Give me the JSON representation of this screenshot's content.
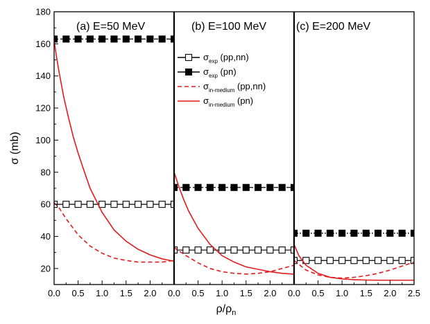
{
  "chart_data": {
    "type": "line",
    "ylabel": "σ (mb)",
    "xlabel": {
      "main": "ρ/ρ",
      "sub": "n"
    },
    "ylim": [
      10,
      180
    ],
    "yticks": [
      "20",
      "40",
      "60",
      "80",
      "100",
      "120",
      "140",
      "160",
      "180"
    ],
    "xlim": [
      0,
      2.5
    ],
    "xticks": [
      "0.0",
      "0.5",
      "1.0",
      "1.5",
      "2.0",
      "2.5"
    ],
    "colors": {
      "exp": "#000000",
      "in_medium": "#e31a1c"
    },
    "legend": [
      {
        "id": "exp_ppnn",
        "style": "open-square-line",
        "main": "σ",
        "sub": "exp",
        "rest": " (pp,nn)"
      },
      {
        "id": "exp_pn",
        "style": "filled-square-line",
        "main": "σ",
        "sub": "exp",
        "rest": " (pn)"
      },
      {
        "id": "med_ppnn",
        "style": "red-dashed",
        "main": "σ",
        "sub": "in-medium",
        "rest": " (pp,nn)"
      },
      {
        "id": "med_pn",
        "style": "red-solid",
        "main": "σ",
        "sub": "in-medium",
        "rest": " (pn)"
      }
    ],
    "panels": [
      {
        "title": "(a) E=50 MeV",
        "series": [
          {
            "id": "exp_ppnn",
            "x": [
              0,
              0.25,
              0.5,
              0.75,
              1.0,
              1.25,
              1.5,
              1.75,
              2.0,
              2.25,
              2.5
            ],
            "y": [
              60,
              60,
              60,
              60,
              60,
              60,
              60,
              60,
              60,
              60,
              60
            ]
          },
          {
            "id": "exp_pn",
            "x": [
              0,
              0.25,
              0.5,
              0.75,
              1.0,
              1.25,
              1.5,
              1.75,
              2.0,
              2.25,
              2.5
            ],
            "y": [
              163,
              163,
              163,
              163,
              163,
              163,
              163,
              163,
              163,
              163,
              163
            ]
          },
          {
            "id": "med_ppnn",
            "x": [
              0,
              0.1,
              0.25,
              0.5,
              0.75,
              1.0,
              1.25,
              1.5,
              1.75,
              2.0,
              2.25,
              2.5
            ],
            "y": [
              61,
              58,
              51,
              41,
              34,
              29.5,
              26.5,
              25,
              24,
              24,
              24,
              25
            ]
          },
          {
            "id": "med_pn",
            "x": [
              0,
              0.05,
              0.1,
              0.2,
              0.3,
              0.4,
              0.5,
              0.6,
              0.75,
              1.0,
              1.25,
              1.5,
              1.75,
              2.0,
              2.25,
              2.5
            ],
            "y": [
              162,
              152,
              143,
              127,
              114,
              102,
              92,
              83,
              70,
              55,
              44,
              37,
              32,
              28.5,
              26,
              24.5
            ]
          }
        ]
      },
      {
        "title": "(b) E=100 MeV",
        "series": [
          {
            "id": "exp_ppnn",
            "x": [
              0,
              0.25,
              0.5,
              0.75,
              1.0,
              1.25,
              1.5,
              1.75,
              2.0,
              2.25,
              2.5
            ],
            "y": [
              31.5,
              31.5,
              31.5,
              31.5,
              31.5,
              31.5,
              31.5,
              31.5,
              31.5,
              31.5,
              31.5
            ]
          },
          {
            "id": "exp_pn",
            "x": [
              0,
              0.25,
              0.5,
              0.75,
              1.0,
              1.25,
              1.5,
              1.75,
              2.0,
              2.25,
              2.5
            ],
            "y": [
              70.5,
              70.5,
              70.5,
              70.5,
              70.5,
              70.5,
              70.5,
              70.5,
              70.5,
              70.5,
              70.5
            ]
          },
          {
            "id": "med_ppnn",
            "x": [
              0,
              0.25,
              0.5,
              0.75,
              1.0,
              1.25,
              1.5,
              1.75,
              2.0,
              2.25,
              2.5
            ],
            "y": [
              33,
              28,
              23.5,
              20,
              18,
              17,
              16.5,
              17,
              18,
              20,
              22
            ]
          },
          {
            "id": "med_pn",
            "x": [
              0,
              0.1,
              0.2,
              0.3,
              0.5,
              0.75,
              1.0,
              1.25,
              1.5,
              1.75,
              2.0,
              2.25,
              2.5
            ],
            "y": [
              80,
              71,
              63,
              56,
              45,
              35,
              28,
              24,
              21,
              19.5,
              18,
              17,
              16.5
            ]
          }
        ]
      },
      {
        "title": "(c) E=200 MeV",
        "series": [
          {
            "id": "exp_ppnn",
            "x": [
              0,
              0.25,
              0.5,
              0.75,
              1.0,
              1.25,
              1.5,
              1.75,
              2.0,
              2.25,
              2.5
            ],
            "y": [
              25,
              25,
              25,
              25,
              25,
              25,
              25,
              25,
              25,
              25,
              25
            ]
          },
          {
            "id": "exp_pn",
            "x": [
              0,
              0.25,
              0.5,
              0.75,
              1.0,
              1.25,
              1.5,
              1.75,
              2.0,
              2.25,
              2.5
            ],
            "y": [
              42,
              42,
              42,
              42,
              42,
              42,
              42,
              42,
              42,
              42,
              42
            ]
          },
          {
            "id": "med_ppnn",
            "x": [
              0,
              0.25,
              0.5,
              0.75,
              1.0,
              1.25,
              1.5,
              1.75,
              2.0,
              2.25,
              2.5
            ],
            "y": [
              25,
              19,
              16,
              14.5,
              14,
              14.5,
              15.5,
              17,
              19,
              21.5,
              24
            ]
          },
          {
            "id": "med_pn",
            "x": [
              0,
              0.1,
              0.25,
              0.5,
              0.75,
              1.0,
              1.25,
              1.5,
              1.75,
              2.0,
              2.5
            ],
            "y": [
              35,
              28,
              22,
              17,
              14.5,
              13.5,
              13,
              12.8,
              12.7,
              12.7,
              12.7
            ]
          }
        ]
      }
    ]
  }
}
